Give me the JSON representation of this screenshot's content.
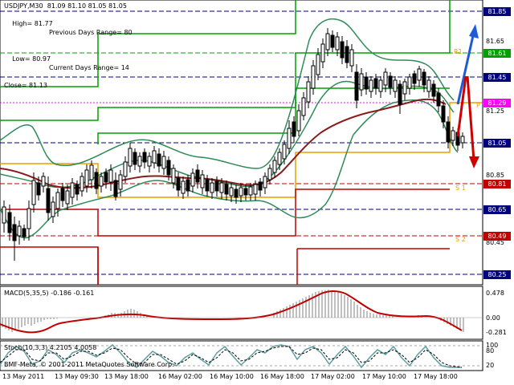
{
  "header": {
    "symbol_line": "USDJPY,M30  81.09 81.10 81.05 81.05",
    "high": "High= 81.77",
    "low": "Low= 80.97",
    "close": "Close= 81.13",
    "prev_range": "Previous Days Range= 80",
    "curr_range": "Current Days Range= 14"
  },
  "price_axis": {
    "ticks": [
      "81.65",
      "81.25",
      "80.85",
      "80.45"
    ],
    "labels": [
      {
        "text": "81.85",
        "bg": "#000080",
        "fg": "#ffffff"
      },
      {
        "text": "81.61",
        "bg": "#00a000",
        "fg": "#ffffff"
      },
      {
        "text": "81.45",
        "bg": "#000080",
        "fg": "#ffffff"
      },
      {
        "text": "81.29",
        "bg": "#ff00ff",
        "fg": "#ffffff"
      },
      {
        "text": "81.05",
        "bg": "#000080",
        "fg": "#ffffff"
      },
      {
        "text": "80.81",
        "bg": "#c00000",
        "fg": "#ffffff"
      },
      {
        "text": "80.65",
        "bg": "#000080",
        "fg": "#ffffff"
      },
      {
        "text": "80.49",
        "bg": "#c00000",
        "fg": "#ffffff"
      },
      {
        "text": "80.25",
        "bg": "#000080",
        "fg": "#ffffff"
      }
    ]
  },
  "pivot_tags": {
    "r1": "R1",
    "p": "P",
    "s1": "S 1",
    "s2": "S 2"
  },
  "macd": {
    "title": "MACD(5,35,5) -0.186 -0.161",
    "ticks": [
      "0.478",
      "0.00",
      "-0.281"
    ]
  },
  "stoch": {
    "title": "Stoch(10,3,3) 4.2105 4.0058",
    "ticks": [
      "100",
      "80",
      "20"
    ]
  },
  "copyright": "BMF-Meta, © 2001-2011 MetaQuotes Software Corp.",
  "time_axis": [
    "13 May 2011",
    "13 May 09:30",
    "13 May 18:00",
    "16 May 02:00",
    "16 May 10:00",
    "16 May 18:00",
    "17 May 02:00",
    "17 May 10:00",
    "17 May 18:00"
  ],
  "colors": {
    "candle": "#000000",
    "bollinger": "#2e8b57",
    "ma": "#8b1a1a",
    "resistance": "#00a000",
    "support": "#c00000",
    "pivot": "#e8a000",
    "macd_hist": "#c0c0c0",
    "macd_signal": "#c00000",
    "stoch_main": "#5f9ea0",
    "stoch_signal": "#000000",
    "arrow_up": "#1e5bd8",
    "arrow_down": "#d00000"
  }
}
